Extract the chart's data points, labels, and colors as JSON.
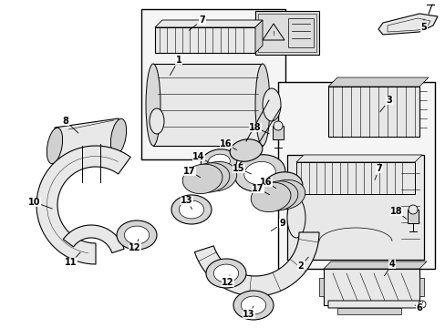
{
  "bg": "#ffffff",
  "lc": "#000000",
  "fig_w": 4.89,
  "fig_h": 3.6,
  "dpi": 100,
  "label_fs": 7.0,
  "lw": 0.8
}
